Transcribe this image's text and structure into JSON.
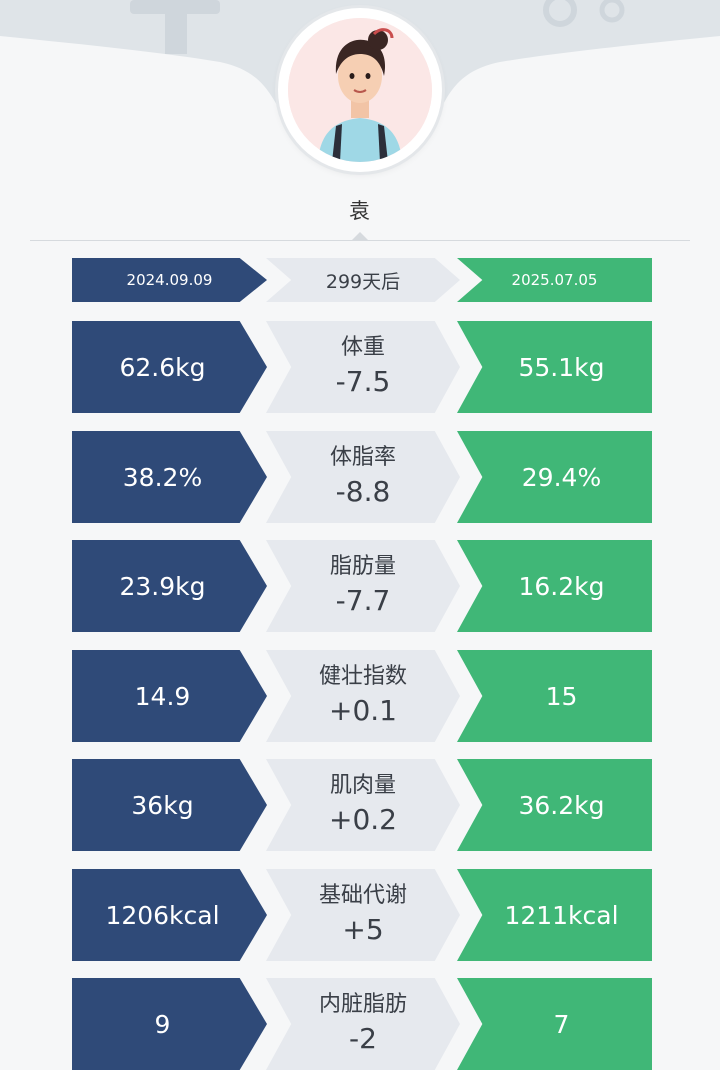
{
  "profile": {
    "name": "袁"
  },
  "comparison": {
    "start_date": "2024.09.09",
    "duration": "299天后",
    "end_date": "2025.07.05",
    "metrics": [
      {
        "label": "体重",
        "before": "62.6kg",
        "change": "-7.5",
        "after": "55.1kg"
      },
      {
        "label": "体脂率",
        "before": "38.2%",
        "change": "-8.8",
        "after": "29.4%"
      },
      {
        "label": "脂肪量",
        "before": "23.9kg",
        "change": "-7.7",
        "after": "16.2kg"
      },
      {
        "label": "健壮指数",
        "before": "14.9",
        "change": "+0.1",
        "after": "15"
      },
      {
        "label": "肌肉量",
        "before": "36kg",
        "change": "+0.2",
        "after": "36.2kg"
      },
      {
        "label": "基础代谢",
        "before": "1206kcal",
        "change": "+5",
        "after": "1211kcal"
      },
      {
        "label": "内脏脂肪",
        "before": "9",
        "change": "-2",
        "after": "7"
      }
    ]
  },
  "colors": {
    "before": "#2f4a78",
    "change": "#e6e9ee",
    "after": "#40b777"
  }
}
